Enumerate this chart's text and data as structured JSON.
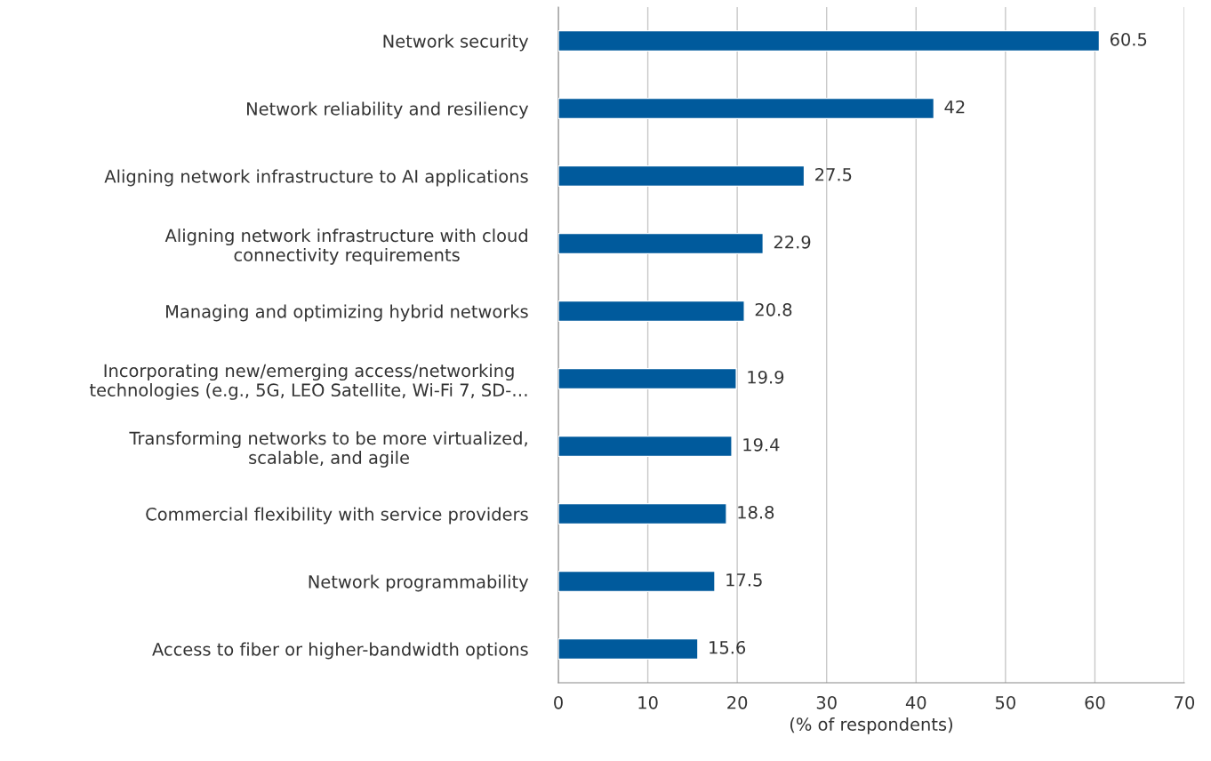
{
  "chart_data": {
    "type": "bar",
    "orientation": "horizontal",
    "xlabel": "(% of respondents)",
    "categories": [
      "Network security",
      "Network reliability and resiliency",
      "Aligning network infrastructure to AI applications",
      "Aligning network infrastructure with cloud\nconnectivity requirements",
      "Managing and optimizing hybrid networks",
      "Incorporating new/emerging access/networking\ntechnologies (e.g., 5G, LEO Satellite, Wi-Fi 7, SD-…",
      "Transforming networks to be more virtualized,\nscalable, and agile",
      "Commercial flexibility with service providers",
      "Network programmability",
      "Access to fiber or higher-bandwidth options"
    ],
    "values": [
      60.5,
      42,
      27.5,
      22.9,
      20.8,
      19.9,
      19.4,
      18.8,
      17.5,
      15.6
    ],
    "color": "#005a9c",
    "data_labels": true,
    "xlim": [
      0,
      70
    ],
    "xticks": [
      0,
      10,
      20,
      30,
      40,
      50,
      60,
      70
    ],
    "grid": "x",
    "legend": false
  }
}
